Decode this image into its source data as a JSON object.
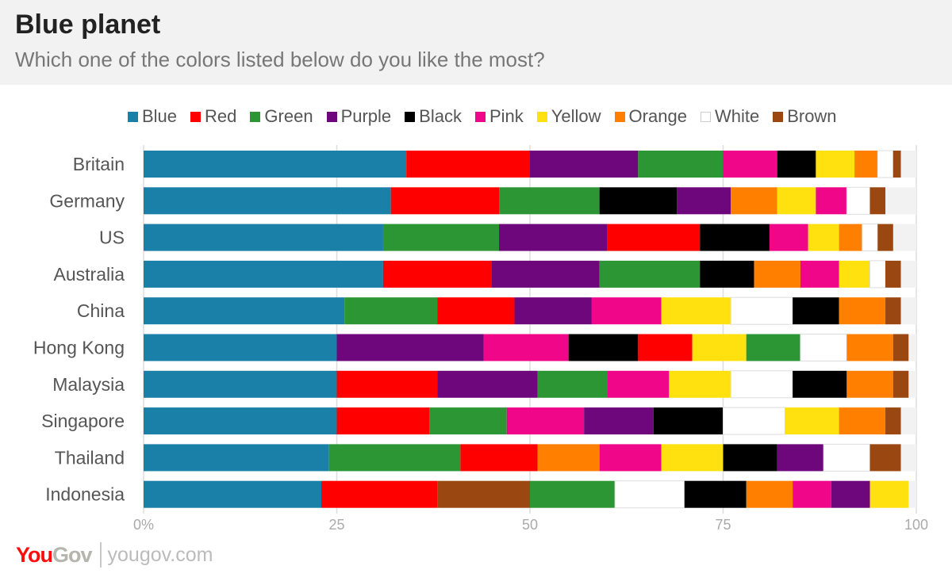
{
  "header": {
    "title": "Blue planet",
    "subtitle": "Which one of the colors listed below do you like the most?"
  },
  "footer": {
    "logo": "YouGov",
    "logo_you": "You",
    "logo_gov": "Gov",
    "site": "yougov.com"
  },
  "chart_data": {
    "type": "bar",
    "orientation": "horizontal-stacked",
    "title": "Blue planet",
    "subtitle": "Which one of the colors listed below do you like the most?",
    "xlim": [
      0,
      100
    ],
    "xticks": [
      "0%",
      "25",
      "50",
      "75",
      "100"
    ],
    "grid": true,
    "legend_position": "top",
    "colors": {
      "Blue": "#1b80a8",
      "Red": "#ff0000",
      "Green": "#2c9634",
      "Purple": "#6e067c",
      "Black": "#000000",
      "Pink": "#ef0689",
      "Yellow": "#ffe10f",
      "Orange": "#ff8000",
      "White": "#ffffff",
      "Brown": "#9b4711"
    },
    "legend": [
      "Blue",
      "Red",
      "Green",
      "Purple",
      "Black",
      "Pink",
      "Yellow",
      "Orange",
      "White",
      "Brown"
    ],
    "rows": [
      {
        "category": "Britain",
        "segments": [
          [
            "Blue",
            34
          ],
          [
            "Red",
            16
          ],
          [
            "Purple",
            14
          ],
          [
            "Green",
            11
          ],
          [
            "Pink",
            7
          ],
          [
            "Black",
            5
          ],
          [
            "Yellow",
            5
          ],
          [
            "Orange",
            3
          ],
          [
            "White",
            2
          ],
          [
            "Brown",
            1
          ]
        ]
      },
      {
        "category": "Germany",
        "segments": [
          [
            "Blue",
            32
          ],
          [
            "Red",
            14
          ],
          [
            "Green",
            13
          ],
          [
            "Black",
            10
          ],
          [
            "Purple",
            7
          ],
          [
            "Orange",
            6
          ],
          [
            "Yellow",
            5
          ],
          [
            "Pink",
            4
          ],
          [
            "White",
            3
          ],
          [
            "Brown",
            2
          ]
        ]
      },
      {
        "category": "US",
        "segments": [
          [
            "Blue",
            31
          ],
          [
            "Green",
            15
          ],
          [
            "Purple",
            14
          ],
          [
            "Red",
            12
          ],
          [
            "Black",
            9
          ],
          [
            "Pink",
            5
          ],
          [
            "Yellow",
            4
          ],
          [
            "Orange",
            3
          ],
          [
            "White",
            2
          ],
          [
            "Brown",
            2
          ]
        ]
      },
      {
        "category": "Australia",
        "segments": [
          [
            "Blue",
            31
          ],
          [
            "Red",
            14
          ],
          [
            "Purple",
            14
          ],
          [
            "Green",
            13
          ],
          [
            "Black",
            7
          ],
          [
            "Orange",
            6
          ],
          [
            "Pink",
            5
          ],
          [
            "Yellow",
            4
          ],
          [
            "White",
            2
          ],
          [
            "Brown",
            2
          ]
        ]
      },
      {
        "category": "China",
        "segments": [
          [
            "Blue",
            26
          ],
          [
            "Green",
            12
          ],
          [
            "Red",
            10
          ],
          [
            "Purple",
            10
          ],
          [
            "Pink",
            9
          ],
          [
            "Yellow",
            9
          ],
          [
            "White",
            8
          ],
          [
            "Black",
            6
          ],
          [
            "Orange",
            6
          ],
          [
            "Brown",
            2
          ]
        ]
      },
      {
        "category": "Hong Kong",
        "segments": [
          [
            "Blue",
            25
          ],
          [
            "Purple",
            19
          ],
          [
            "Pink",
            11
          ],
          [
            "Black",
            9
          ],
          [
            "Red",
            7
          ],
          [
            "Yellow",
            7
          ],
          [
            "Green",
            7
          ],
          [
            "White",
            6
          ],
          [
            "Orange",
            6
          ],
          [
            "Brown",
            2
          ]
        ]
      },
      {
        "category": "Malaysia",
        "segments": [
          [
            "Blue",
            25
          ],
          [
            "Red",
            13
          ],
          [
            "Purple",
            13
          ],
          [
            "Green",
            9
          ],
          [
            "Pink",
            8
          ],
          [
            "Yellow",
            8
          ],
          [
            "White",
            8
          ],
          [
            "Black",
            7
          ],
          [
            "Orange",
            6
          ],
          [
            "Brown",
            2
          ]
        ]
      },
      {
        "category": "Singapore",
        "segments": [
          [
            "Blue",
            25
          ],
          [
            "Red",
            12
          ],
          [
            "Green",
            10
          ],
          [
            "Pink",
            10
          ],
          [
            "Purple",
            9
          ],
          [
            "Black",
            9
          ],
          [
            "White",
            8
          ],
          [
            "Yellow",
            7
          ],
          [
            "Orange",
            6
          ],
          [
            "Brown",
            2
          ]
        ]
      },
      {
        "category": "Thailand",
        "segments": [
          [
            "Blue",
            24
          ],
          [
            "Green",
            17
          ],
          [
            "Red",
            10
          ],
          [
            "Orange",
            8
          ],
          [
            "Pink",
            8
          ],
          [
            "Yellow",
            8
          ],
          [
            "Black",
            7
          ],
          [
            "Purple",
            6
          ],
          [
            "White",
            6
          ],
          [
            "Brown",
            4
          ]
        ]
      },
      {
        "category": "Indonesia",
        "segments": [
          [
            "Blue",
            23
          ],
          [
            "Red",
            15
          ],
          [
            "Brown",
            12
          ],
          [
            "Green",
            11
          ],
          [
            "White",
            9
          ],
          [
            "Black",
            8
          ],
          [
            "Orange",
            6
          ],
          [
            "Pink",
            5
          ],
          [
            "Purple",
            5
          ],
          [
            "Yellow",
            5
          ]
        ]
      }
    ]
  }
}
